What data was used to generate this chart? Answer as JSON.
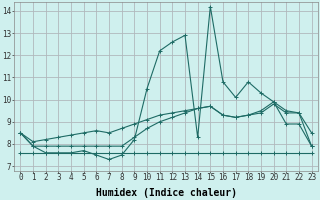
{
  "xlabel": "Humidex (Indice chaleur)",
  "xlim": [
    -0.5,
    23.5
  ],
  "ylim": [
    6.8,
    14.4
  ],
  "bg_color": "#cff0ee",
  "grid_color": "#b0b8bc",
  "line_color": "#1e6b65",
  "series": [
    [
      8.5,
      7.9,
      7.6,
      7.6,
      7.6,
      7.7,
      7.5,
      7.3,
      7.5,
      8.2,
      10.5,
      12.2,
      12.6,
      12.9,
      8.3,
      14.2,
      10.8,
      10.1,
      10.8,
      10.3,
      9.9,
      8.9,
      8.9,
      7.9
    ],
    [
      8.5,
      7.9,
      7.9,
      7.9,
      7.9,
      7.9,
      7.9,
      7.9,
      7.9,
      8.3,
      8.7,
      9.0,
      9.2,
      9.4,
      9.6,
      9.7,
      9.3,
      9.2,
      9.3,
      9.5,
      9.9,
      9.5,
      9.4,
      7.9
    ],
    [
      7.6,
      7.6,
      7.6,
      7.6,
      7.6,
      7.6,
      7.6,
      7.6,
      7.6,
      7.6,
      7.6,
      7.6,
      7.6,
      7.6,
      7.6,
      7.6,
      7.6,
      7.6,
      7.6,
      7.6,
      7.6,
      7.6,
      7.6,
      7.6
    ],
    [
      8.5,
      8.1,
      8.2,
      8.3,
      8.4,
      8.5,
      8.6,
      8.5,
      8.7,
      8.9,
      9.1,
      9.3,
      9.4,
      9.5,
      9.6,
      9.7,
      9.3,
      9.2,
      9.3,
      9.4,
      9.8,
      9.4,
      9.4,
      8.5
    ]
  ],
  "xticks": [
    0,
    1,
    2,
    3,
    4,
    5,
    6,
    7,
    8,
    9,
    10,
    11,
    12,
    13,
    14,
    15,
    16,
    17,
    18,
    19,
    20,
    21,
    22,
    23
  ],
  "yticks": [
    7,
    8,
    9,
    10,
    11,
    12,
    13,
    14
  ],
  "tick_fontsize": 5.5,
  "label_fontsize": 7,
  "linewidth": 0.8,
  "markersize": 2.5
}
